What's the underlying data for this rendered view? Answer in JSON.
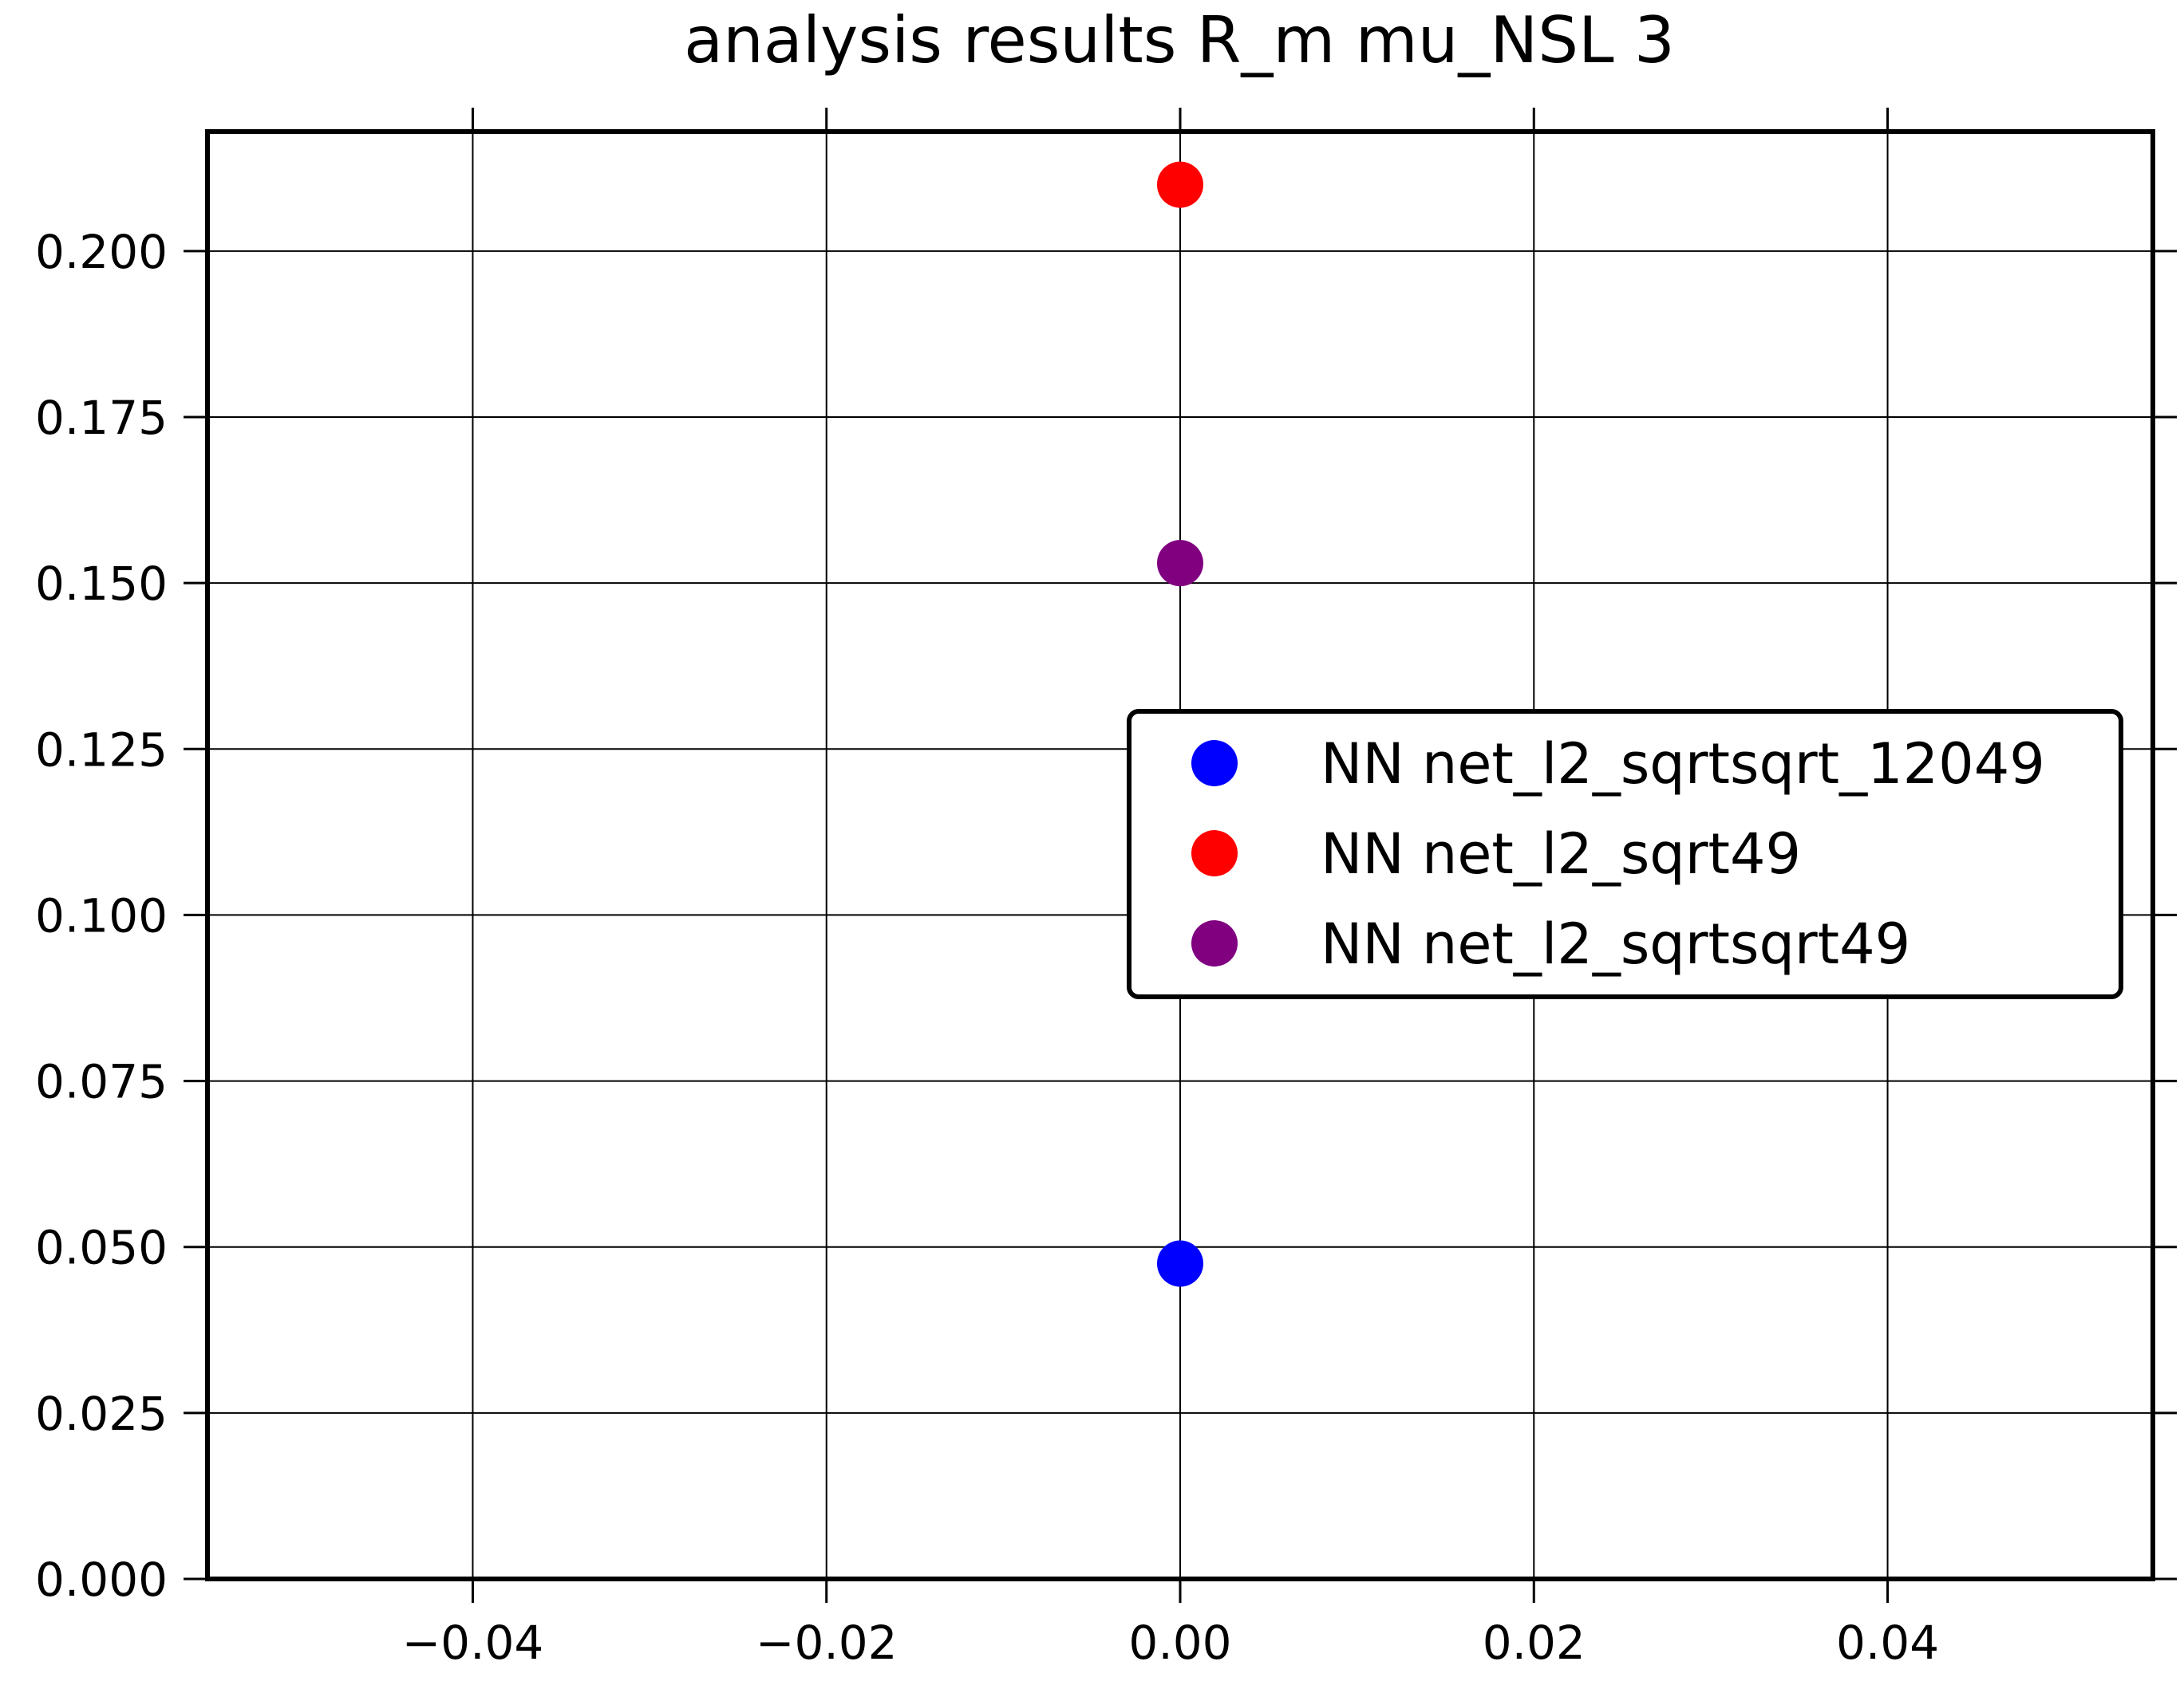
{
  "chart_data": {
    "type": "scatter",
    "title": "analysis results R_m  mu_NSL 3",
    "xlabel": "",
    "ylabel": "",
    "xlim": [
      -0.055,
      0.055
    ],
    "ylim": [
      0.0,
      0.218
    ],
    "x_ticks": [
      -0.04,
      -0.02,
      0.0,
      0.02,
      0.04
    ],
    "x_tick_labels": [
      "−0.04",
      "−0.02",
      "0.00",
      "0.02",
      "0.04"
    ],
    "y_ticks": [
      0.0,
      0.025,
      0.05,
      0.075,
      0.1,
      0.125,
      0.15,
      0.175,
      0.2
    ],
    "y_tick_labels": [
      "0.000",
      "0.025",
      "0.050",
      "0.075",
      "0.100",
      "0.125",
      "0.150",
      "0.175",
      "0.200"
    ],
    "grid": true,
    "legend_position": "right",
    "series": [
      {
        "name": "NN net_l2_sqrtsqrt_12049",
        "color": "#0000ff",
        "x": [
          0.0
        ],
        "y": [
          0.0475
        ]
      },
      {
        "name": "NN net_l2_sqrt49",
        "color": "#ff0000",
        "x": [
          0.0
        ],
        "y": [
          0.21
        ]
      },
      {
        "name": "NN net_l2_sqrtsqrt49",
        "color": "#800080",
        "x": [
          0.0
        ],
        "y": [
          0.153
        ]
      }
    ]
  }
}
